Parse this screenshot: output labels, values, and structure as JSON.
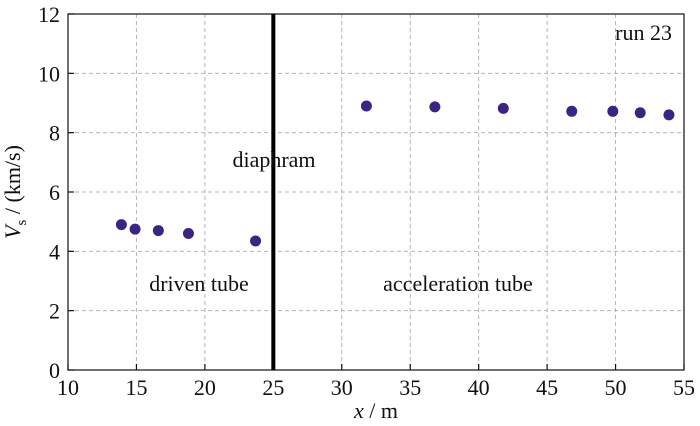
{
  "chart_data": {
    "type": "scatter",
    "xlabel": "x / m",
    "ylabel": "Vs / (km/s)",
    "xlim": [
      10,
      55
    ],
    "ylim": [
      0,
      12
    ],
    "x_ticks": [
      10,
      15,
      20,
      25,
      30,
      35,
      40,
      45,
      50,
      55
    ],
    "y_ticks": [
      0,
      2,
      4,
      6,
      8,
      10,
      12
    ],
    "grid": true,
    "series": [
      {
        "points": [
          {
            "x": 13.9,
            "y": 4.9
          },
          {
            "x": 14.9,
            "y": 4.75
          },
          {
            "x": 16.6,
            "y": 4.7
          },
          {
            "x": 18.8,
            "y": 4.6
          },
          {
            "x": 23.7,
            "y": 4.35
          },
          {
            "x": 31.8,
            "y": 8.9
          },
          {
            "x": 36.8,
            "y": 8.87
          },
          {
            "x": 41.8,
            "y": 8.82
          },
          {
            "x": 46.8,
            "y": 8.72
          },
          {
            "x": 49.8,
            "y": 8.72
          },
          {
            "x": 51.8,
            "y": 8.67
          },
          {
            "x": 53.9,
            "y": 8.6
          }
        ]
      }
    ],
    "divider": {
      "x": 25,
      "label": "diaphram"
    },
    "annotations": [
      {
        "text": "run 23",
        "position": "top-right"
      },
      {
        "text": "driven tube",
        "position": "left-bottom"
      },
      {
        "text": "acceleration tube",
        "position": "right-bottom"
      }
    ],
    "marker_color": "#3a2585",
    "divider_color": "#000000"
  }
}
